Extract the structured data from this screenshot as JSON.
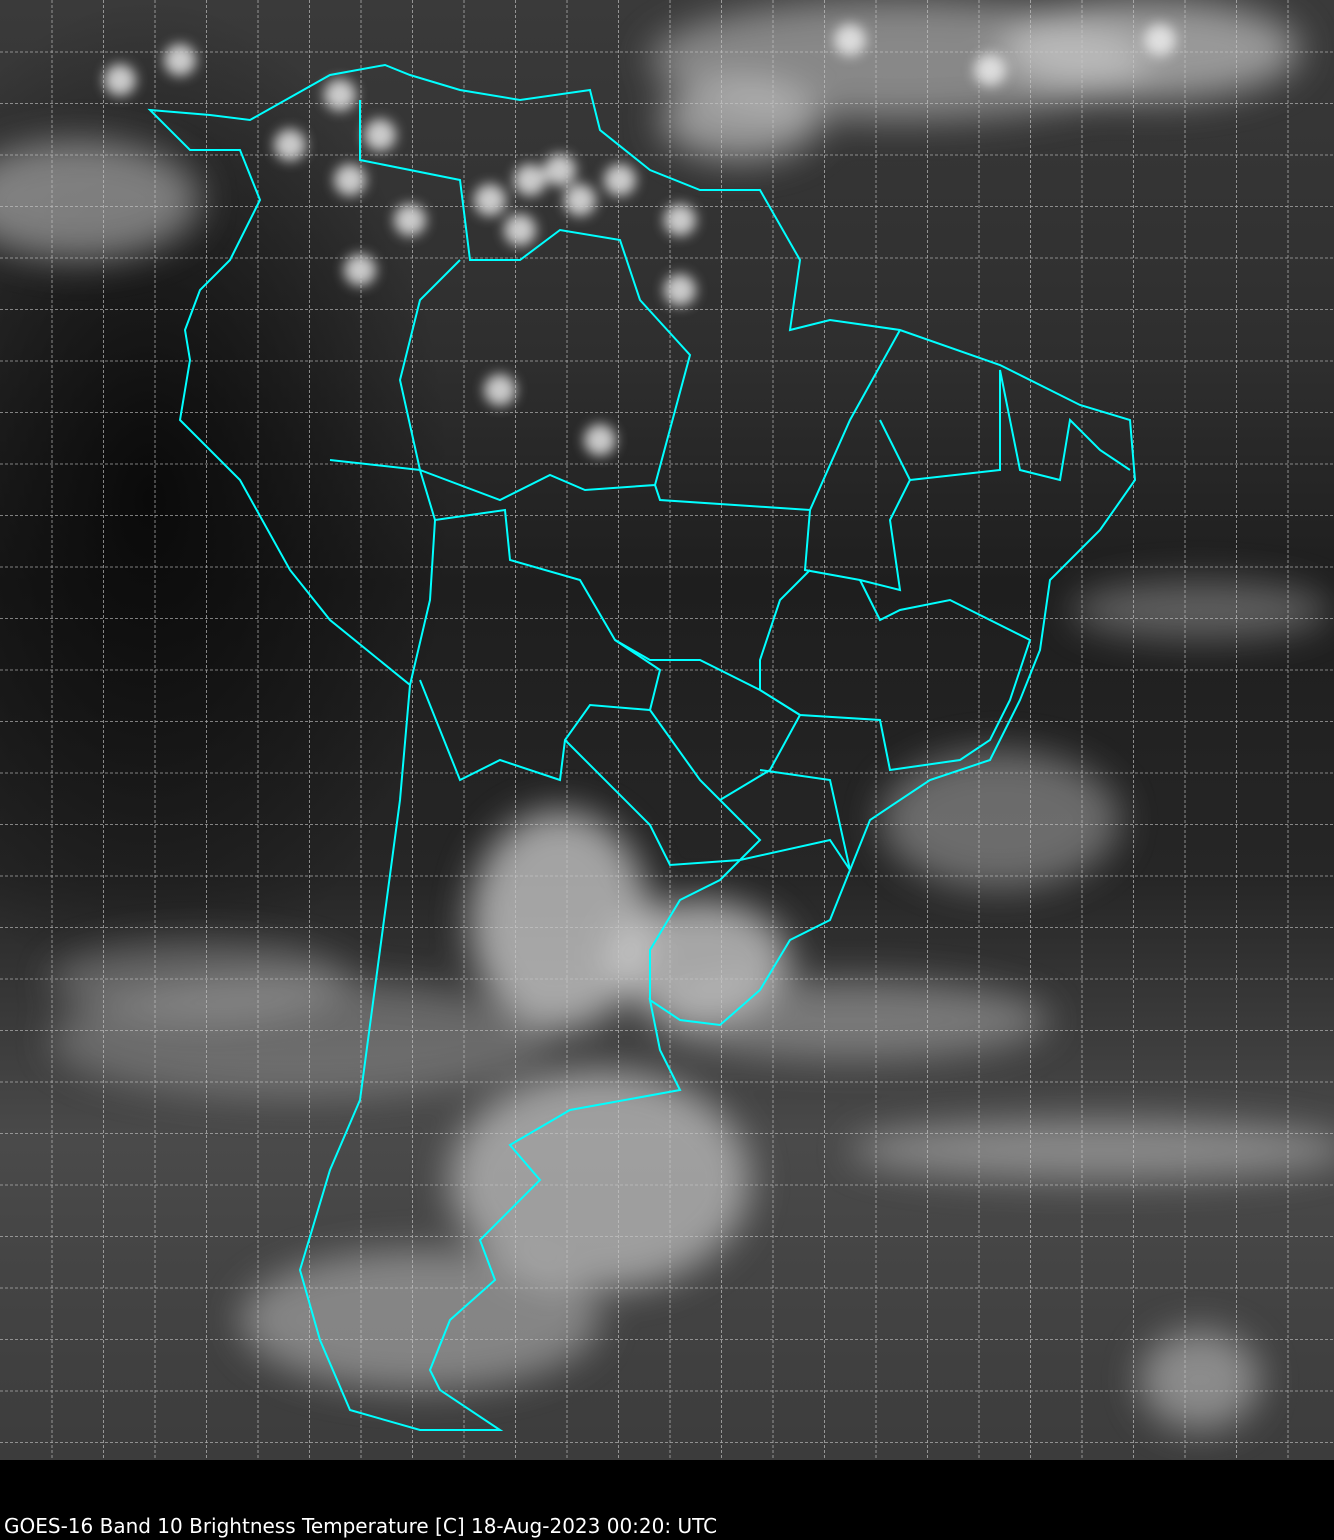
{
  "caption": "GOES-16 Band 10  Brightness Temperature [C] 18-Aug-2023 00:20: UTC",
  "colors": {
    "coastline": "#00ffff",
    "grid": "#c8c8c8",
    "background": "#000000"
  },
  "imagery": "grayscale infrared brightness temperature, South America"
}
